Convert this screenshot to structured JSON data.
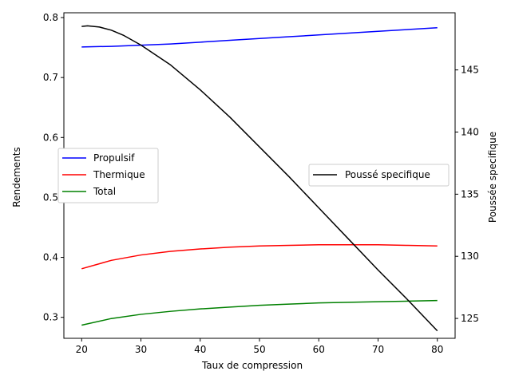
{
  "chart_data": {
    "type": "line",
    "title": "",
    "xlabel": "Taux de compression",
    "ylabel_left": "Rendements",
    "ylabel_right": "Poussée specifique",
    "xlim": [
      17,
      83
    ],
    "ylim_left": [
      0.265,
      0.808
    ],
    "ylim_right": [
      123.4,
      149.6
    ],
    "x_ticks": [
      20,
      30,
      40,
      50,
      60,
      70,
      80
    ],
    "y_ticks_left": [
      0.3,
      0.4,
      0.5,
      0.6,
      0.7,
      0.8
    ],
    "y_ticks_right": [
      125,
      130,
      135,
      140,
      145
    ],
    "grid": false,
    "legend_left_placement": "center-left",
    "legend_right_placement": "center-right",
    "x": [
      20,
      25,
      30,
      35,
      40,
      45,
      50,
      55,
      60,
      65,
      70,
      75,
      80
    ],
    "series_left": [
      {
        "name": "Propulsif",
        "color": "#0000ff",
        "values": [
          0.751,
          0.752,
          0.754,
          0.756,
          0.759,
          0.762,
          0.765,
          0.768,
          0.771,
          0.774,
          0.777,
          0.78,
          0.783
        ]
      },
      {
        "name": "Thermique",
        "color": "#ff0000",
        "values": [
          0.381,
          0.395,
          0.404,
          0.41,
          0.414,
          0.417,
          0.419,
          0.42,
          0.421,
          0.421,
          0.421,
          0.42,
          0.419
        ]
      },
      {
        "name": "Total",
        "color": "#008000",
        "values": [
          0.287,
          0.298,
          0.305,
          0.31,
          0.314,
          0.317,
          0.32,
          0.322,
          0.324,
          0.325,
          0.326,
          0.327,
          0.328
        ]
      }
    ],
    "series_right": [
      {
        "name": "Poussé specifique",
        "color": "#000000",
        "x": [
          20,
          21,
          23,
          25,
          27,
          30,
          35,
          40,
          45,
          50,
          55,
          60,
          65,
          70,
          75,
          80
        ],
        "values": [
          148.5,
          148.55,
          148.45,
          148.2,
          147.8,
          147.0,
          145.4,
          143.4,
          141.2,
          138.8,
          136.4,
          133.9,
          131.4,
          128.9,
          126.5,
          124.0
        ]
      }
    ]
  }
}
